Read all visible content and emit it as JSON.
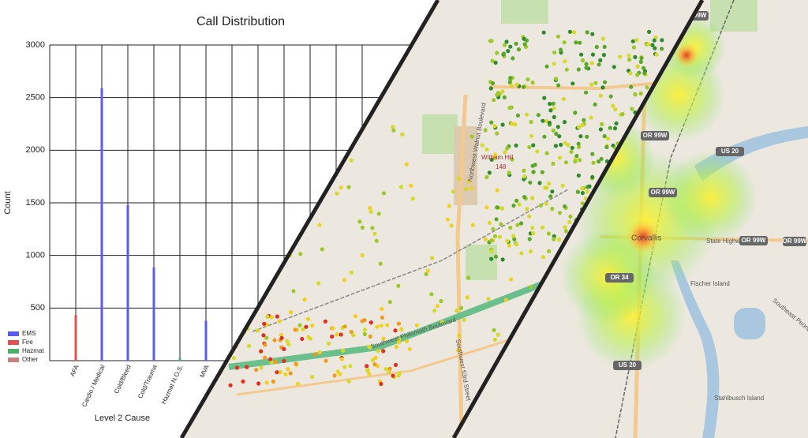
{
  "chart_data": {
    "type": "bar",
    "title": "Call Distribution",
    "x_label": "Level 2 Cause",
    "y_label": "Count",
    "categories": [
      "AFA",
      "Cardio / Medical",
      "Cold/Bleed",
      "Cold/Trauma",
      "Hazmat N.O.S.",
      "MVA",
      null,
      null,
      null,
      null,
      null,
      null
    ],
    "series": [
      {
        "name": "EMS",
        "color": "#5b5bf0",
        "values": [
          null,
          2590,
          1480,
          885,
          null,
          380,
          null,
          null,
          null,
          null,
          null,
          null
        ]
      },
      {
        "name": "Fire",
        "color": "#e05050",
        "values": [
          435,
          null,
          null,
          null,
          null,
          null,
          null,
          null,
          null,
          null,
          null,
          null
        ]
      },
      {
        "name": "Hazmat",
        "color": "#4caf6a",
        "values": [
          null,
          null,
          null,
          null,
          25,
          null,
          null,
          null,
          null,
          null,
          null,
          null
        ]
      },
      {
        "name": "Other",
        "color": "#c98080",
        "values": [
          null,
          null,
          null,
          null,
          null,
          null,
          null,
          null,
          null,
          null,
          null,
          null
        ]
      }
    ],
    "ylim": [
      0,
      3000
    ],
    "yticks": [
      500,
      1000,
      1500,
      2000,
      2500,
      3000
    ],
    "grid": true
  },
  "map": {
    "labels": [
      "Witham Hill",
      "148",
      "Northwest Walnut Boulevard",
      "Corvallis",
      "State Highway 34",
      "Fischer Island",
      "Stahlbusch Island",
      "Southwest 53rd Street",
      "Southwest Philomath Boulevard",
      "Southeast Peoria Road"
    ],
    "shields": [
      "OR 99W",
      "OR 99W",
      "OR 99W",
      "US 20",
      "OR 99W",
      "OR 34",
      "US 20",
      "OR 99W"
    ]
  }
}
